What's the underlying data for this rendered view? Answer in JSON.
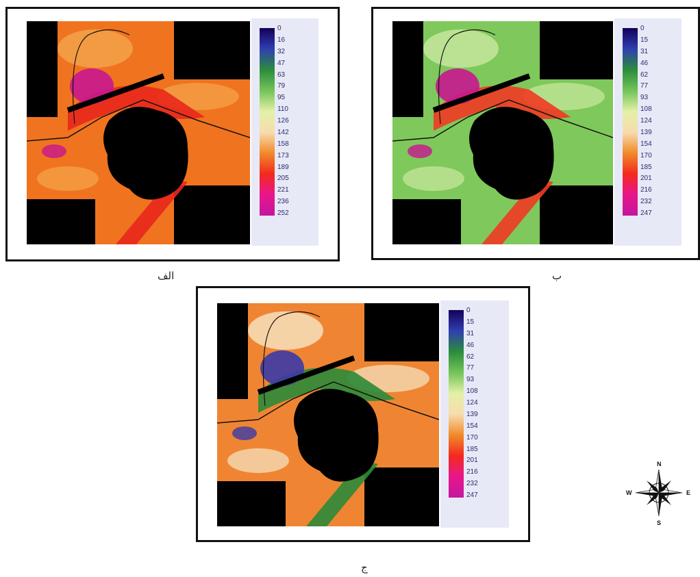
{
  "panels": [
    {
      "id": "alef",
      "caption": "الف",
      "legend_ticks": [
        "0",
        "16",
        "32",
        "47",
        "63",
        "79",
        "95",
        "110",
        "126",
        "142",
        "158",
        "173",
        "189",
        "205",
        "221",
        "236",
        "252"
      ],
      "ramp_colors": [
        "#14005a",
        "#2f3fb0",
        "#2b8c3c",
        "#73c35a",
        "#e3f0a6",
        "#f7dcae",
        "#f08a2a",
        "#f32a1d",
        "#e8168c",
        "#c3179e"
      ],
      "fill_colors": {
        "base": "#f0731f",
        "light": "#f4a54b",
        "dark": "#e8281c",
        "magenta": "#c8178f",
        "void": "#000000"
      }
    },
    {
      "id": "be",
      "caption": "ب",
      "legend_ticks": [
        "0",
        "15",
        "31",
        "46",
        "62",
        "77",
        "93",
        "108",
        "124",
        "139",
        "154",
        "170",
        "185",
        "201",
        "216",
        "232",
        "247"
      ],
      "ramp_colors": [
        "#14005a",
        "#2f3fb0",
        "#2b8c3c",
        "#73c35a",
        "#e3f0a6",
        "#f7dcae",
        "#f08a2a",
        "#f32a1d",
        "#e8168c",
        "#c3179e"
      ],
      "fill_colors": {
        "base": "#7fc85c",
        "light": "#c9e8a0",
        "dark": "#f03a22",
        "magenta": "#c8178f",
        "void": "#000000"
      }
    },
    {
      "id": "jim",
      "caption": "ج",
      "legend_ticks": [
        "0",
        "15",
        "31",
        "46",
        "62",
        "77",
        "93",
        "108",
        "124",
        "139",
        "154",
        "170",
        "185",
        "201",
        "216",
        "232",
        "247"
      ],
      "ramp_colors": [
        "#14005a",
        "#2f3fb0",
        "#2b8c3c",
        "#73c35a",
        "#e3f0a6",
        "#f7dcae",
        "#f08a2a",
        "#f32a1d",
        "#e8168c",
        "#c3179e"
      ],
      "fill_colors": {
        "base": "#ef8532",
        "light": "#f7e5c4",
        "dark": "#2c8a3a",
        "magenta": "#3b3aa6",
        "void": "#000000"
      }
    }
  ],
  "compass": {
    "north": "N",
    "south": "S",
    "east": "E",
    "west": "W",
    "icon": "north-arrow-compass-rose-icon"
  }
}
